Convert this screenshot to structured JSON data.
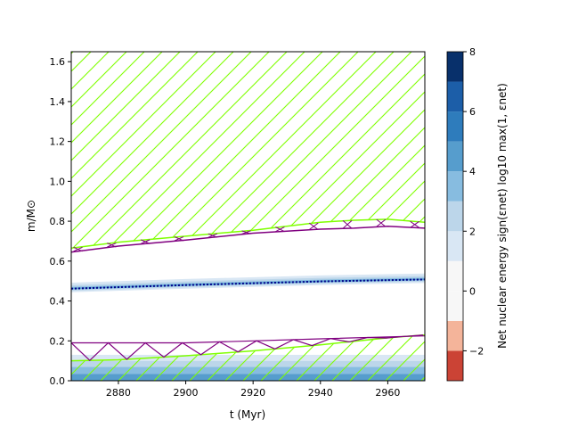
{
  "chart_data": {
    "type": "area",
    "title": "",
    "xlabel": "t (Myr)",
    "ylabel": "m/M⊙",
    "xlim": [
      2866,
      2971
    ],
    "ylim": [
      0,
      1.65
    ],
    "xticks": [
      2880,
      2900,
      2920,
      2940,
      2960
    ],
    "yticks": [
      0.0,
      0.2,
      0.4,
      0.6,
      0.8,
      1.0,
      1.2,
      1.4,
      1.6
    ],
    "xtick_labels": [
      "2880",
      "2900",
      "2920",
      "2940",
      "2960"
    ],
    "ytick_labels": [
      "0.0",
      "0.2",
      "0.4",
      "0.6",
      "0.8",
      "1.0",
      "1.2",
      "1.4",
      "1.6"
    ],
    "grid": false,
    "convective_envelope_boundary": {
      "x": [
        2866,
        2880,
        2900,
        2920,
        2940,
        2950,
        2960,
        2971
      ],
      "y": [
        0.665,
        0.695,
        0.725,
        0.755,
        0.795,
        0.805,
        0.81,
        0.795
      ]
    },
    "overshoot_envelope_boundary": {
      "x": [
        2866,
        2880,
        2900,
        2920,
        2940,
        2950,
        2960,
        2971
      ],
      "y": [
        0.645,
        0.675,
        0.705,
        0.74,
        0.76,
        0.765,
        0.775,
        0.765
      ]
    },
    "lower_convective_boundary": {
      "x": [
        2866,
        2880,
        2900,
        2920,
        2940,
        2960,
        2971
      ],
      "y": [
        0.1,
        0.105,
        0.125,
        0.15,
        0.18,
        0.215,
        0.23
      ]
    },
    "lower_overshoot_top": {
      "x": [
        2866,
        2880,
        2900,
        2920,
        2940,
        2960,
        2971
      ],
      "y": [
        0.19,
        0.19,
        0.19,
        0.2,
        0.21,
        0.22,
        0.225
      ]
    },
    "burning_shell": {
      "x": [
        2866,
        2900,
        2940,
        2971
      ],
      "y": [
        0.462,
        0.48,
        0.498,
        0.508
      ]
    },
    "colorbar": {
      "label": "Net nuclear energy sign(εnet) log10 max(1, εnet)",
      "range": [
        -3,
        8
      ],
      "ticks": [
        -2,
        0,
        2,
        4,
        6,
        8
      ],
      "tick_labels": [
        "−2",
        "0",
        "2",
        "4",
        "6",
        "8"
      ],
      "levels": [
        -3,
        -2,
        -1,
        0,
        1,
        2,
        3,
        4,
        5,
        6,
        7,
        8
      ],
      "colors": [
        "#cb4335",
        "#f4b49a",
        "#f7f7f7",
        "#f7f7f7",
        "#d9e7f4",
        "#bcd6ea",
        "#87bce0",
        "#569dcd",
        "#2e7cbc",
        "#1c5ea8",
        "#08306b"
      ]
    },
    "colors": {
      "convective": "#7fff00",
      "overshoot": "#800080",
      "shell_line": "#00008b"
    }
  }
}
